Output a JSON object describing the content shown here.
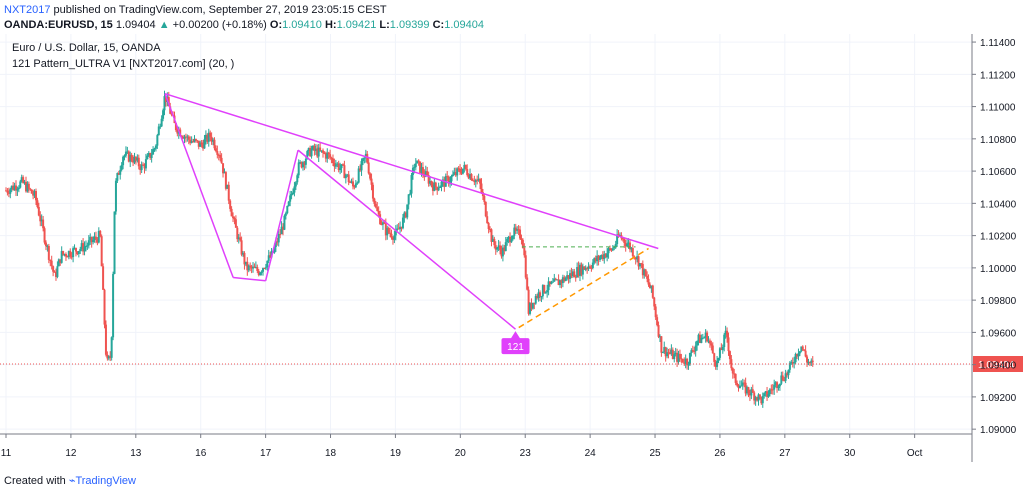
{
  "header": {
    "author": "NXT2017",
    "published": "published on TradingView.com, September 27, 2019 23:05:15 CEST",
    "symbol": "OANDA:EURUSD, 15",
    "last": "1.09404",
    "arrow": "▲",
    "change": "+0.00200 (+0.18%)",
    "o_label": "O:",
    "o_value": "1.09410",
    "h_label": "H:",
    "h_value": "1.09421",
    "l_label": "L:",
    "l_value": "1.09399",
    "c_label": "C:",
    "c_value": "1.09404"
  },
  "legend": {
    "line1": "Euro / U.S. Dollar, 15, OANDA",
    "line2": "121 Pattern_ULTRA V1 [NXT2017.com] (20, )"
  },
  "footer": {
    "created_with": "Created with",
    "brand": "TradingView"
  },
  "colors": {
    "up": "#26a69a",
    "down": "#ef5350",
    "pattern": "#e040fb",
    "projection": "#ff9800",
    "level": "#4caf50",
    "price_line": "#ef5350"
  },
  "chart_data": {
    "type": "candlestick",
    "ylim": [
      1.0897,
      1.1145
    ],
    "yticks": [
      "1.11400",
      "1.11200",
      "1.11000",
      "1.10800",
      "1.10600",
      "1.10400",
      "1.10200",
      "1.10000",
      "1.09800",
      "1.09600",
      "1.09400",
      "1.09200",
      "1.09000"
    ],
    "xticks": [
      {
        "label": "11",
        "x": 11
      },
      {
        "label": "12",
        "x": 12
      },
      {
        "label": "13",
        "x": 13
      },
      {
        "label": "16",
        "x": 14
      },
      {
        "label": "17",
        "x": 15
      },
      {
        "label": "18",
        "x": 16
      },
      {
        "label": "19",
        "x": 17
      },
      {
        "label": "20",
        "x": 18
      },
      {
        "label": "23",
        "x": 19
      },
      {
        "label": "24",
        "x": 20
      },
      {
        "label": "25",
        "x": 21
      },
      {
        "label": "26",
        "x": 22
      },
      {
        "label": "27",
        "x": 23
      },
      {
        "label": "30",
        "x": 24
      },
      {
        "label": "Oct",
        "x": 25
      }
    ],
    "xlim": [
      11,
      26.5
    ],
    "last_price": 1.09404,
    "last_price_label": "1.09404",
    "path": [
      [
        11.0,
        1.1048
      ],
      [
        11.25,
        1.1053
      ],
      [
        11.45,
        1.1044
      ],
      [
        11.6,
        1.1018
      ],
      [
        11.75,
        1.0994
      ],
      [
        11.85,
        1.1008
      ],
      [
        12.0,
        1.101
      ],
      [
        12.2,
        1.1013
      ],
      [
        12.45,
        1.102
      ],
      [
        12.55,
        1.094
      ],
      [
        12.62,
        1.0946
      ],
      [
        12.68,
        1.105
      ],
      [
        12.8,
        1.107
      ],
      [
        12.95,
        1.1068
      ],
      [
        13.1,
        1.1062
      ],
      [
        13.3,
        1.1075
      ],
      [
        13.45,
        1.1107
      ],
      [
        13.6,
        1.1088
      ],
      [
        13.8,
        1.108
      ],
      [
        14.0,
        1.1076
      ],
      [
        14.15,
        1.1082
      ],
      [
        14.3,
        1.107
      ],
      [
        14.5,
        1.103
      ],
      [
        14.7,
        1.1
      ],
      [
        14.9,
        1.0998
      ],
      [
        15.1,
        1.1008
      ],
      [
        15.3,
        1.103
      ],
      [
        15.5,
        1.1062
      ],
      [
        15.7,
        1.1073
      ],
      [
        15.95,
        1.107
      ],
      [
        16.2,
        1.106
      ],
      [
        16.35,
        1.105
      ],
      [
        16.55,
        1.107
      ],
      [
        16.7,
        1.1036
      ],
      [
        16.85,
        1.1023
      ],
      [
        17.0,
        1.102
      ],
      [
        17.15,
        1.1032
      ],
      [
        17.3,
        1.1066
      ],
      [
        17.45,
        1.1058
      ],
      [
        17.6,
        1.105
      ],
      [
        17.8,
        1.1054
      ],
      [
        18.05,
        1.1062
      ],
      [
        18.3,
        1.1052
      ],
      [
        18.5,
        1.1015
      ],
      [
        18.65,
        1.101
      ],
      [
        18.8,
        1.1022
      ],
      [
        18.95,
        1.102
      ],
      [
        19.0,
        1.1002
      ],
      [
        19.05,
        1.0973
      ],
      [
        19.15,
        1.0982
      ],
      [
        19.3,
        1.0987
      ],
      [
        19.55,
        1.0992
      ],
      [
        19.8,
        1.0998
      ],
      [
        20.0,
        1.1002
      ],
      [
        20.2,
        1.1008
      ],
      [
        20.35,
        1.1012
      ],
      [
        20.45,
        1.102
      ],
      [
        20.6,
        1.1014
      ],
      [
        20.75,
        1.1004
      ],
      [
        20.95,
        1.0985
      ],
      [
        21.1,
        1.095
      ],
      [
        21.3,
        1.0945
      ],
      [
        21.5,
        1.0942
      ],
      [
        21.65,
        1.0955
      ],
      [
        21.8,
        1.0958
      ],
      [
        21.95,
        1.094
      ],
      [
        22.1,
        1.096
      ],
      [
        22.2,
        1.0932
      ],
      [
        22.35,
        1.0926
      ],
      [
        22.5,
        1.0922
      ],
      [
        22.65,
        1.0918
      ],
      [
        22.8,
        1.0925
      ],
      [
        22.95,
        1.0932
      ],
      [
        23.05,
        1.0935
      ],
      [
        23.15,
        1.0945
      ],
      [
        23.25,
        1.0952
      ],
      [
        23.35,
        1.0942
      ],
      [
        23.45,
        1.0939
      ]
    ],
    "pattern_lines": [
      [
        [
          13.45,
          1.1108
        ],
        [
          14.5,
          1.0994
        ]
      ],
      [
        [
          14.5,
          1.0994
        ],
        [
          15.0,
          1.0992
        ]
      ],
      [
        [
          15.0,
          1.0992
        ],
        [
          15.5,
          1.1073
        ]
      ],
      [
        [
          15.5,
          1.1073
        ],
        [
          18.85,
          1.0962
        ]
      ],
      [
        [
          13.45,
          1.1108
        ],
        [
          21.05,
          1.1012
        ]
      ]
    ],
    "projection_line": [
      [
        18.9,
        1.0963
      ],
      [
        20.9,
        1.1012
      ]
    ],
    "level_line": {
      "from": 18.95,
      "to": 20.7,
      "y": 1.1013
    },
    "marker": {
      "label": "121",
      "x": 18.85,
      "y": 1.0962
    }
  }
}
